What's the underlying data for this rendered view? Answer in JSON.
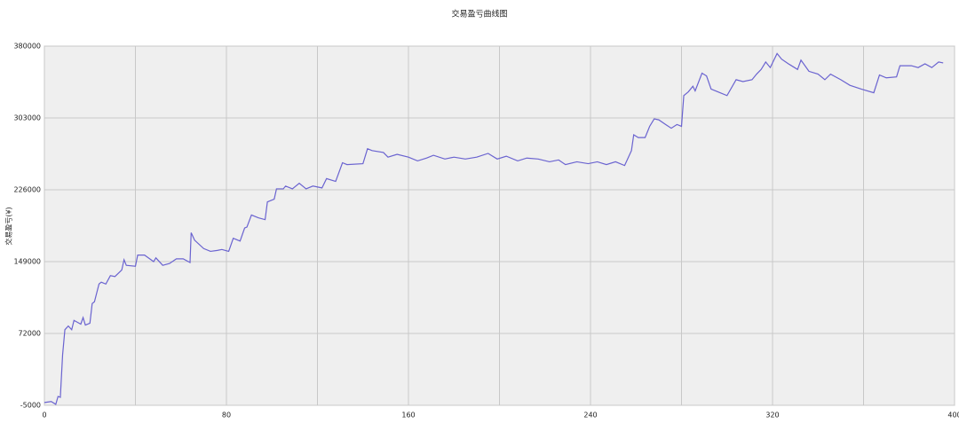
{
  "chart_data": {
    "type": "line",
    "title": "交易盈亏曲线图",
    "y_label": "交易盈亏(¥)",
    "color": "#6a63d0",
    "x": [
      0,
      3,
      5,
      6,
      7,
      8,
      9,
      10.5,
      12,
      13,
      16,
      17,
      18,
      20,
      21,
      22,
      24,
      25,
      27,
      29,
      31,
      34,
      35,
      36,
      40,
      41,
      44,
      48,
      49,
      52,
      55,
      58,
      61,
      64,
      64.5,
      66,
      70,
      73,
      76,
      78,
      81,
      83,
      86,
      88,
      89,
      91,
      94,
      97,
      98,
      101,
      102,
      105,
      106,
      109,
      112,
      115,
      118,
      122,
      124,
      128,
      131,
      133,
      140,
      142,
      144,
      149,
      151,
      155,
      160,
      164,
      168,
      171,
      176,
      180,
      185,
      190,
      195,
      199,
      203,
      208,
      212,
      217,
      222,
      226,
      229,
      234,
      239,
      243,
      247,
      251,
      255,
      258,
      259,
      261,
      264,
      266,
      268,
      270,
      273,
      275.5,
      278,
      280,
      281,
      283,
      285,
      286,
      289,
      291,
      293,
      296,
      300,
      304,
      307,
      311,
      313,
      315,
      317,
      319,
      322,
      324,
      327,
      331,
      332.5,
      336,
      340,
      343,
      345.5,
      350,
      354,
      359,
      364.5,
      367,
      370,
      374.5,
      376,
      381,
      384,
      387,
      390,
      393,
      395
    ],
    "values": [
      -2000,
      -1000,
      -4000,
      4500,
      3500,
      49000,
      76000,
      80000,
      76000,
      86000,
      82000,
      89000,
      81000,
      83000,
      104000,
      106000,
      125000,
      127000,
      125000,
      134000,
      133000,
      140000,
      151000,
      145000,
      144000,
      156000,
      156000,
      149000,
      153000,
      145000,
      147000,
      152000,
      152000,
      148000,
      180000,
      172000,
      163000,
      160000,
      161000,
      162000,
      160000,
      174000,
      171000,
      185000,
      186000,
      199000,
      196000,
      194000,
      213000,
      216000,
      227000,
      227000,
      230000,
      227000,
      233000,
      227000,
      230000,
      228000,
      238000,
      235000,
      255000,
      253000,
      254000,
      270000,
      268000,
      266000,
      261000,
      264000,
      261000,
      257000,
      260000,
      263000,
      259000,
      261000,
      259000,
      261000,
      265000,
      259000,
      262000,
      257000,
      260000,
      259000,
      256000,
      258000,
      253000,
      256000,
      254000,
      256000,
      253000,
      256000,
      252000,
      268000,
      285000,
      282000,
      282000,
      294000,
      302000,
      301000,
      296000,
      292000,
      296000,
      294000,
      327000,
      331000,
      337000,
      332000,
      351000,
      348000,
      334000,
      331000,
      327000,
      344000,
      342000,
      344000,
      350000,
      355000,
      363000,
      357000,
      372000,
      366000,
      361000,
      355000,
      365000,
      353000,
      350000,
      344000,
      350000,
      344000,
      338000,
      334000,
      330000,
      349000,
      346000,
      347000,
      359000,
      359000,
      357000,
      361000,
      357000,
      363000,
      362000
    ],
    "xlim": [
      0,
      400
    ],
    "xticks": [
      0,
      80,
      160,
      240,
      320,
      400
    ],
    "xgrid": [
      40,
      120,
      200,
      280,
      360
    ],
    "ylim": [
      -5000,
      380000
    ],
    "yticks": [
      -5000,
      72000,
      149000,
      226000,
      303000,
      380000
    ],
    "grid": true
  }
}
